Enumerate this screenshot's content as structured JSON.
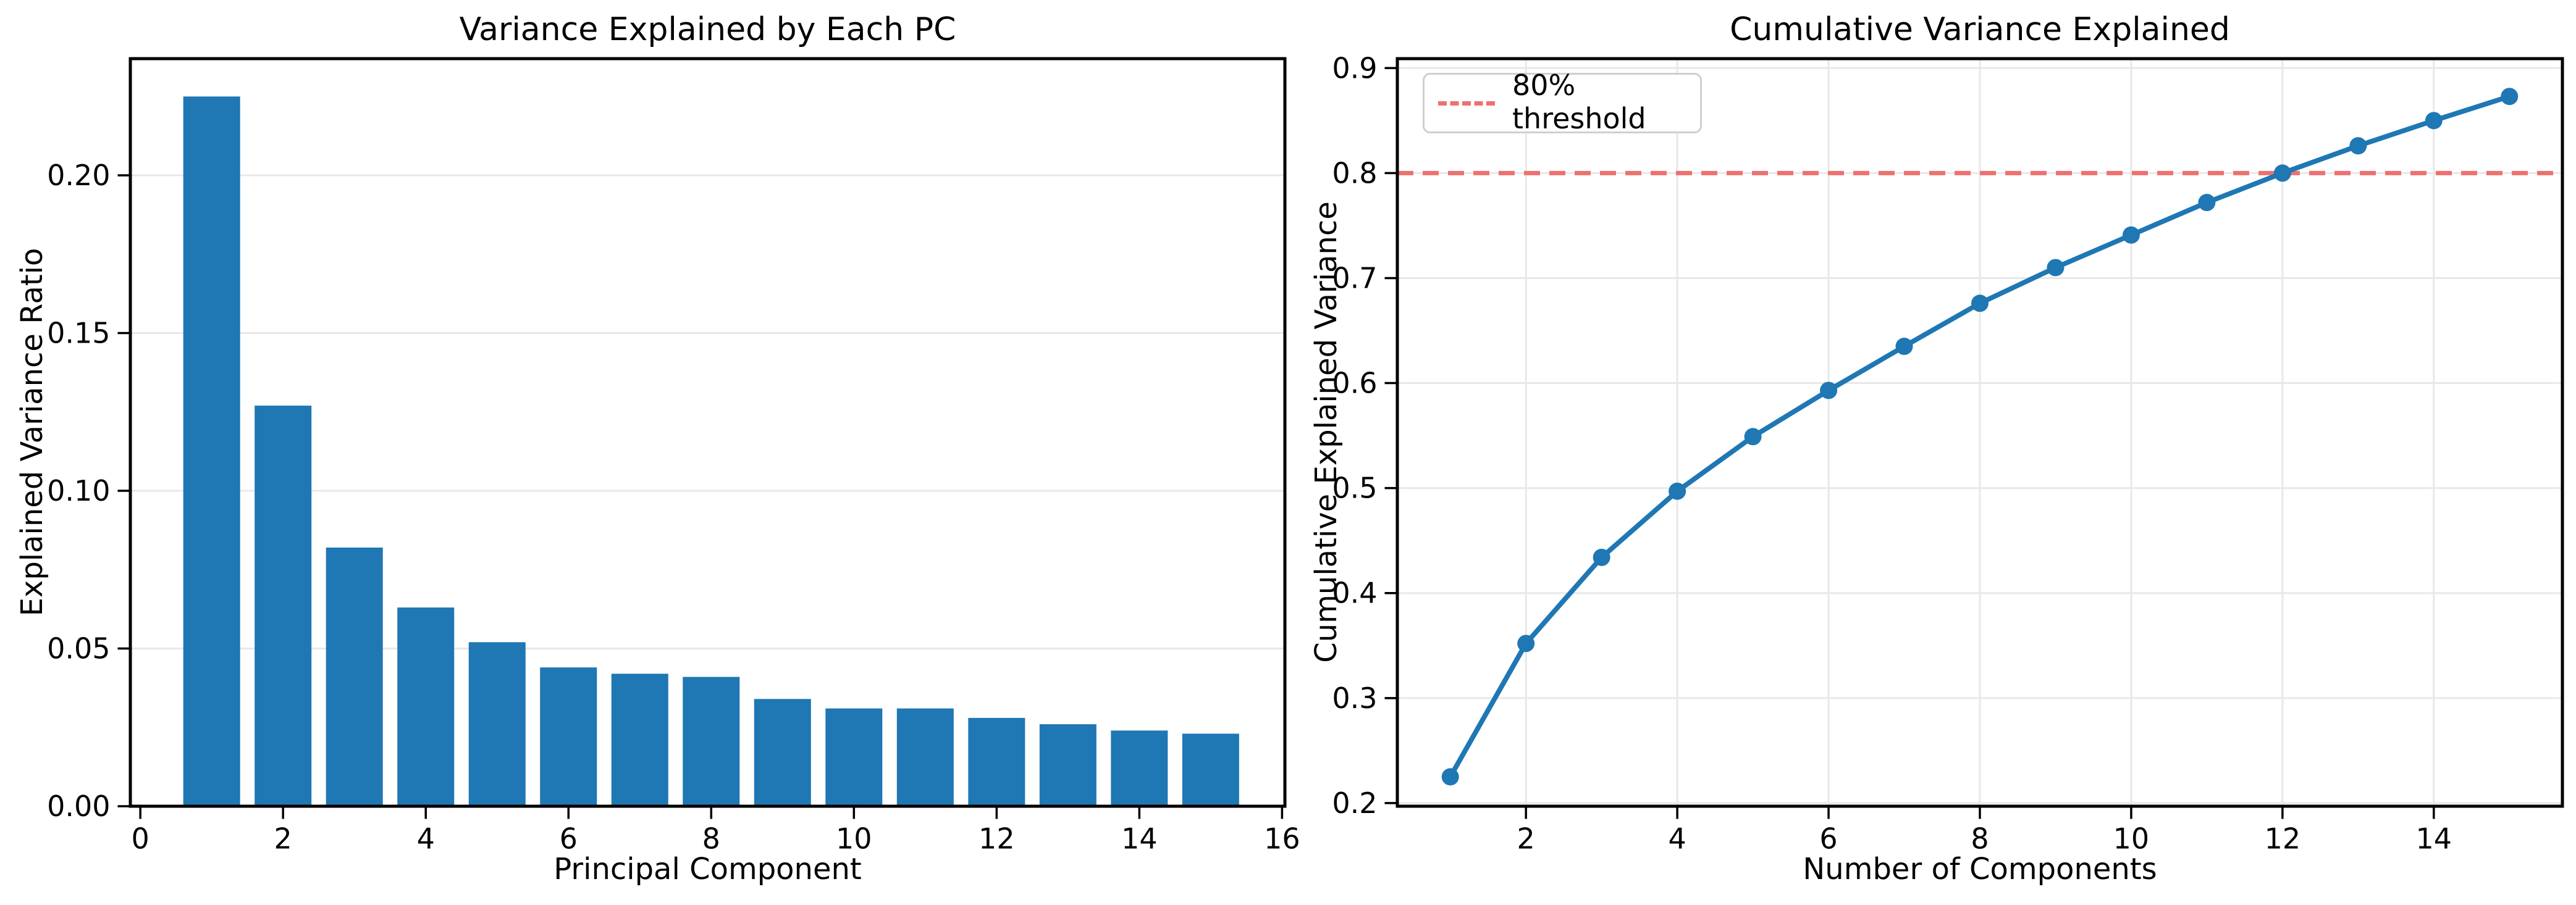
{
  "figure": {
    "background": "#ffffff",
    "text_color": "#000000",
    "grid_color": "#e8e8e8",
    "spine_color": "#000000"
  },
  "chart_data": [
    {
      "type": "bar",
      "title": "Variance Explained by Each PC",
      "xlabel": "Principal Component",
      "ylabel": "Explained Variance Ratio",
      "categories": [
        1,
        2,
        3,
        4,
        5,
        6,
        7,
        8,
        9,
        10,
        11,
        12,
        13,
        14,
        15
      ],
      "values": [
        0.225,
        0.127,
        0.082,
        0.063,
        0.052,
        0.044,
        0.042,
        0.041,
        0.034,
        0.031,
        0.031,
        0.028,
        0.026,
        0.024,
        0.023
      ],
      "bar_color": "#1f77b4",
      "bar_width_units": 0.8,
      "xticks": [
        0,
        2,
        4,
        6,
        8,
        10,
        12,
        14,
        16
      ],
      "xtick_labels": [
        "0",
        "2",
        "4",
        "6",
        "8",
        "10",
        "12",
        "14",
        "16"
      ],
      "yticks": [
        0.0,
        0.05,
        0.1,
        0.15,
        0.2
      ],
      "ytick_labels": [
        "0.00",
        "0.05",
        "0.10",
        "0.15",
        "0.20"
      ],
      "xlim": [
        -0.14,
        16.04
      ],
      "ylim": [
        0,
        0.237
      ],
      "grid": "horizontal"
    },
    {
      "type": "line",
      "title": "Cumulative Variance Explained",
      "xlabel": "Number of Components",
      "ylabel": "Cumulative Explained Variance",
      "x": [
        1,
        2,
        3,
        4,
        5,
        6,
        7,
        8,
        9,
        10,
        11,
        12,
        13,
        14,
        15
      ],
      "y": [
        0.225,
        0.352,
        0.434,
        0.497,
        0.549,
        0.593,
        0.635,
        0.676,
        0.71,
        0.741,
        0.772,
        0.8,
        0.826,
        0.85,
        0.873
      ],
      "line_color": "#1f77b4",
      "marker": "circle",
      "threshold": {
        "value": 0.8,
        "color": "#ef7070",
        "style": "dashed"
      },
      "legend": {
        "entries": [
          {
            "label": "80% threshold",
            "color": "#ef7070",
            "style": "dashed"
          }
        ],
        "position": "upper left"
      },
      "xticks": [
        2,
        4,
        6,
        8,
        10,
        12,
        14
      ],
      "xtick_labels": [
        "2",
        "4",
        "6",
        "8",
        "10",
        "12",
        "14"
      ],
      "yticks": [
        0.2,
        0.3,
        0.4,
        0.5,
        0.6,
        0.7,
        0.8,
        0.9
      ],
      "ytick_labels": [
        "0.2",
        "0.3",
        "0.4",
        "0.5",
        "0.6",
        "0.7",
        "0.8",
        "0.9"
      ],
      "xlim": [
        0.3,
        15.7
      ],
      "ylim": [
        0.197,
        0.909
      ],
      "grid": "both"
    }
  ]
}
